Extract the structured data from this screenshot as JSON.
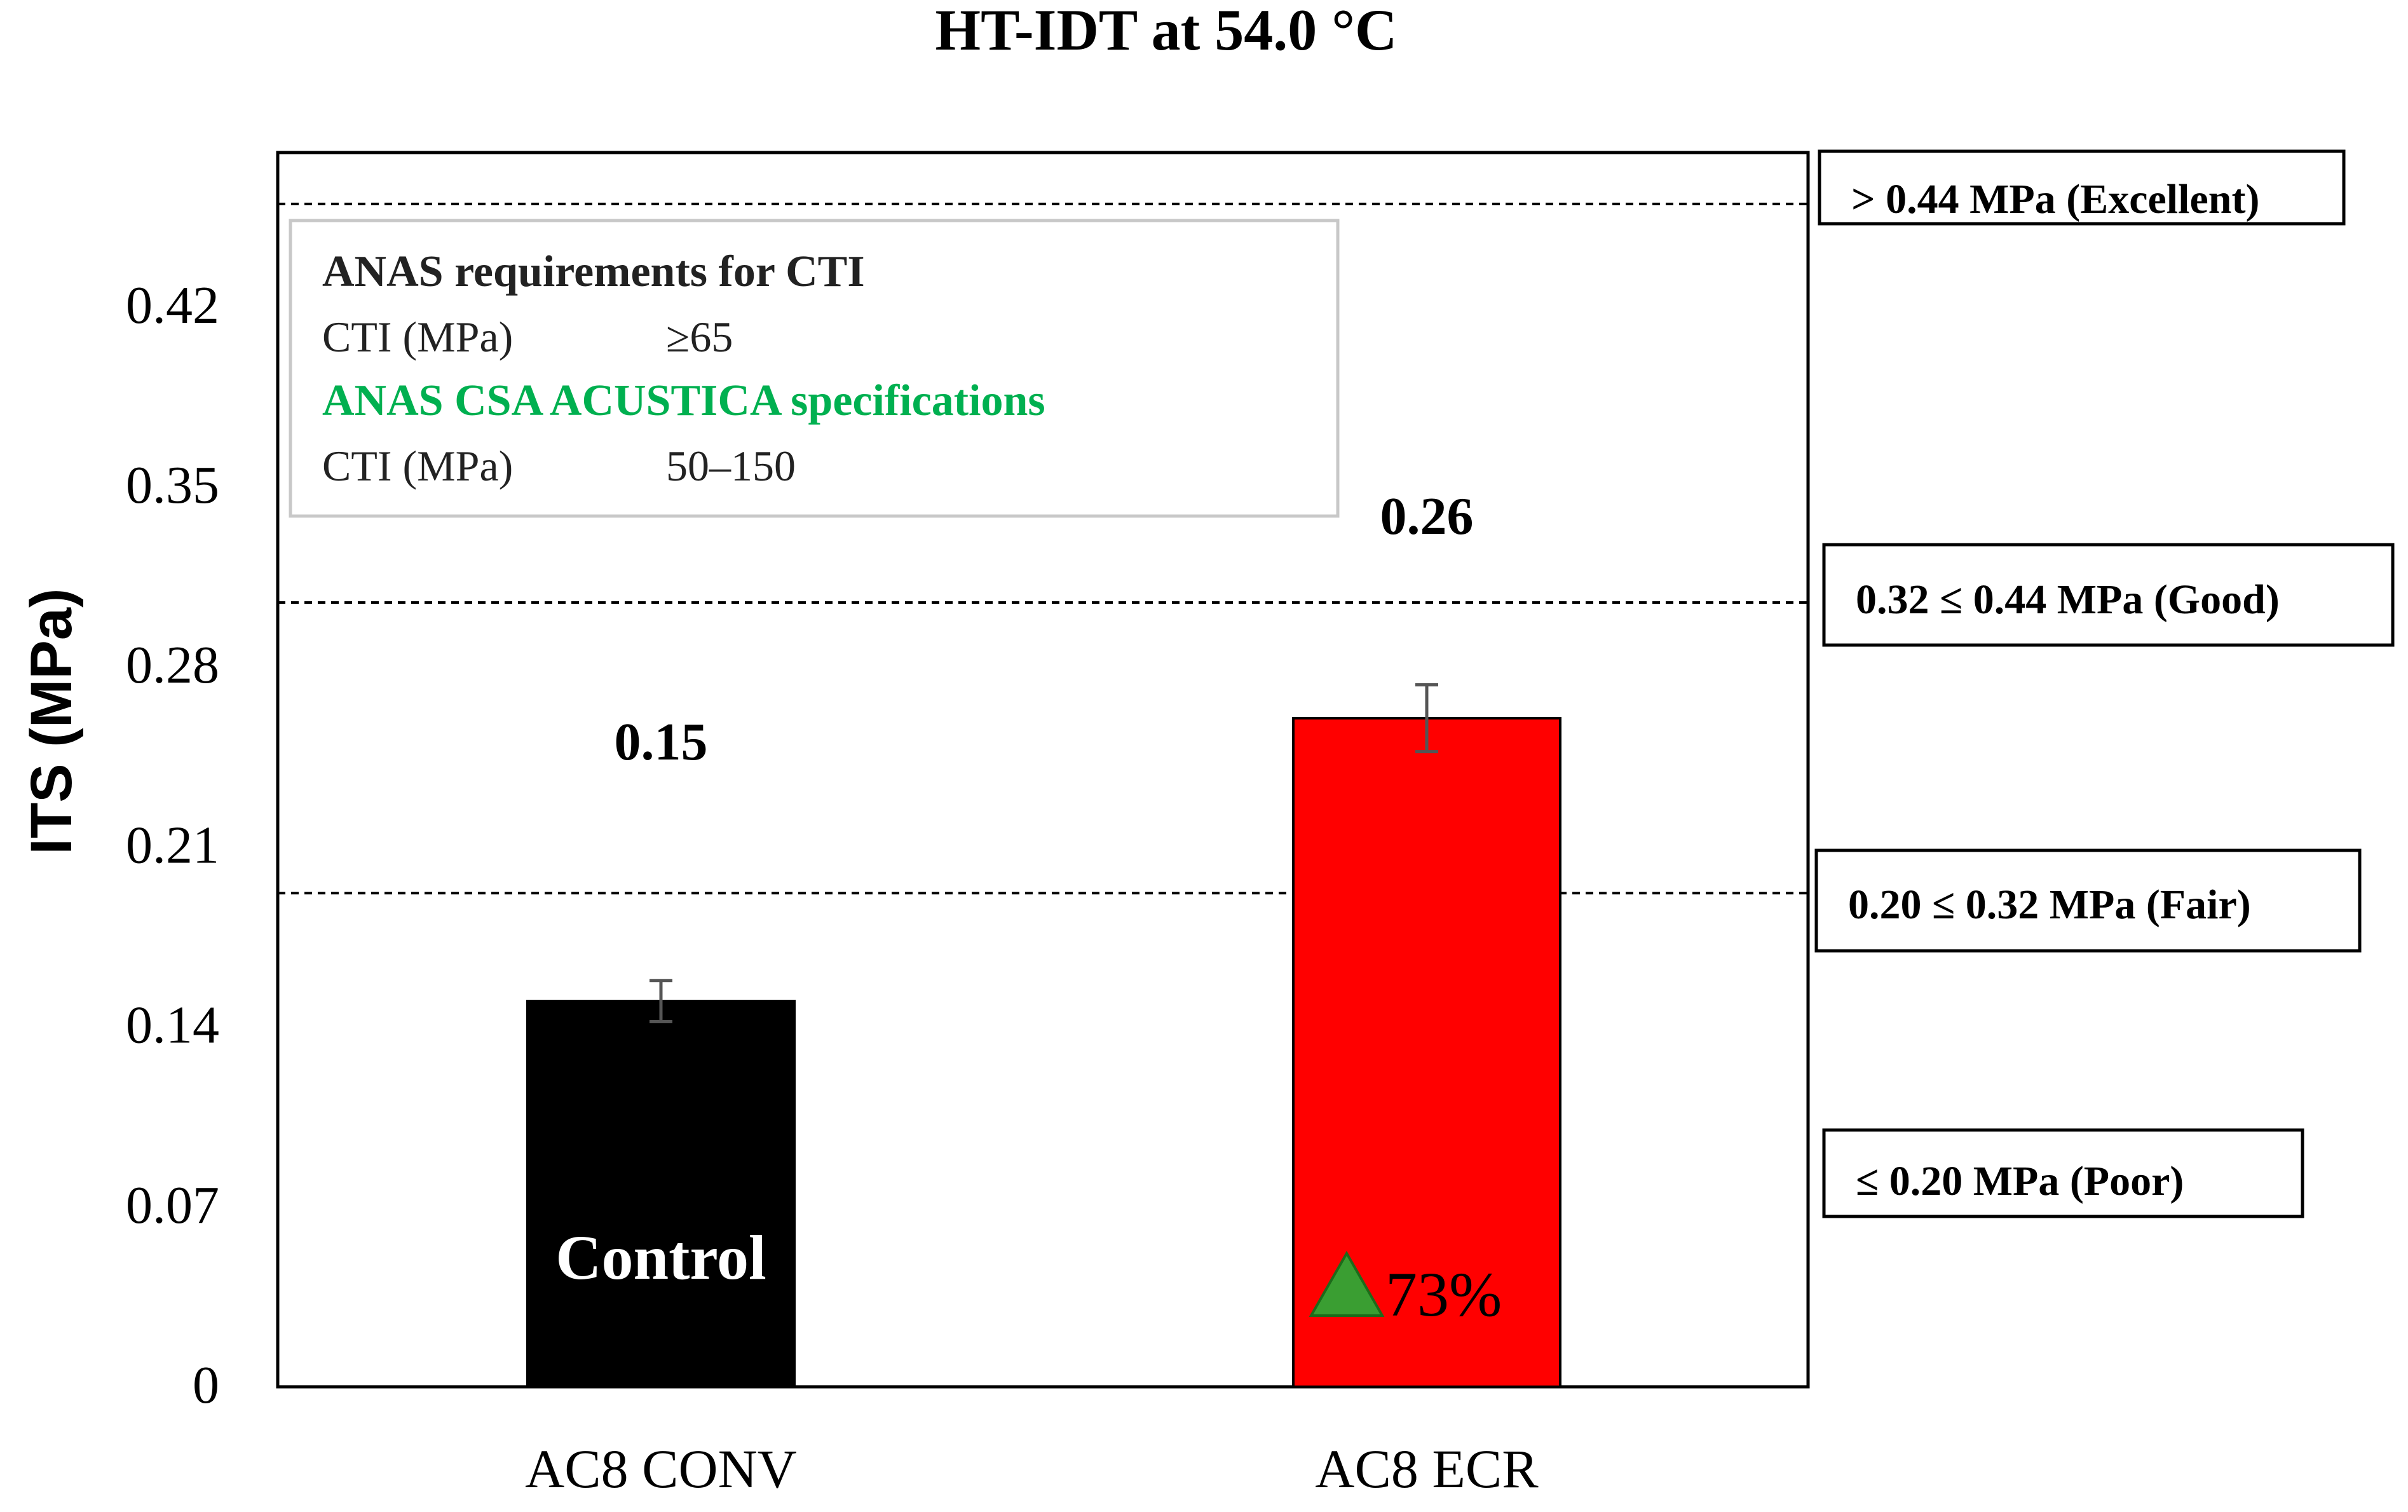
{
  "chart_data": {
    "type": "bar",
    "title": "HT-IDT at 54.0 °C",
    "ylabel": "ITS (MPa)",
    "xlabel": "",
    "ylim": [
      0,
      0.48
    ],
    "yticks": [
      "0",
      "0.07",
      "0.14",
      "0.21",
      "0.28",
      "0.35",
      "0.42"
    ],
    "categories": [
      "AC8 CONV",
      "AC8 ECR"
    ],
    "values": [
      0.15,
      0.26
    ],
    "errors": [
      0.008,
      0.013
    ],
    "value_labels": [
      "0.15",
      "0.26"
    ],
    "bar_colors": [
      "#000000",
      "#ff0000"
    ],
    "bar_annotations": [
      "Control",
      "73%"
    ],
    "increase_marker_color": "#3a9e32",
    "threshold_lines": [
      0.46,
      0.305,
      0.192
    ],
    "threshold_labels": [
      "> 0.44 MPa (Excellent)",
      "0.32 ≤ 0.44 MPa (Good)",
      "0.20 ≤ 0.32 MPa (Fair)",
      "≤ 0.20 MPa (Poor)"
    ],
    "legend_box": {
      "heading": "ANAS requirements for CTI",
      "row1_label": "CTI (MPa)",
      "row1_value": "≥65",
      "subheading": "ANAS CSA ACUSTICA specifications",
      "subheading_color": "#00b050",
      "row2_label": "CTI (MPa)",
      "row2_value": "50–150",
      "placement": "top-left"
    },
    "grid": false
  }
}
